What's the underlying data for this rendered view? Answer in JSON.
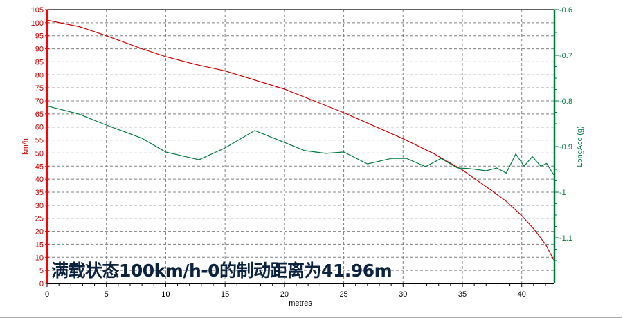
{
  "chart_data": {
    "type": "line",
    "title": "满载状态100km/h-0的制动距离为41.96m",
    "xlabel": "metres",
    "ylabel_left": "km/h",
    "ylabel_right": "LongAcc (g)",
    "xlim": [
      0,
      42.7
    ],
    "ylim_left": [
      0,
      105
    ],
    "ylim_right": [
      -1.1,
      -0.6
    ],
    "x_ticks": [
      0,
      5,
      10,
      15,
      20,
      25,
      30,
      35,
      40
    ],
    "y_left_ticks": [
      0,
      5,
      10,
      15,
      20,
      25,
      30,
      35,
      40,
      45,
      50,
      55,
      60,
      65,
      70,
      75,
      80,
      85,
      90,
      95,
      100,
      105
    ],
    "y_right_ticks": [
      -0.6,
      -0.7,
      -0.8,
      -0.9,
      -1,
      -1.1
    ],
    "grid": true,
    "legend": "none",
    "series": [
      {
        "name": "km/h",
        "axis": "left",
        "color": "#cc0000",
        "x": [
          0,
          2.7,
          5,
          8,
          10,
          12.5,
          15,
          17.5,
          20,
          22.5,
          25,
          27.5,
          30,
          32.5,
          35,
          37.5,
          38.7,
          40,
          41,
          42,
          42.7
        ],
        "y": [
          101,
          98.5,
          95,
          90,
          87,
          84,
          81.5,
          78,
          74.5,
          70,
          65.5,
          60.5,
          55.5,
          50,
          43.5,
          35.5,
          31.5,
          26,
          21,
          15,
          9
        ]
      },
      {
        "name": "LongAcc (g)",
        "axis": "right",
        "color": "#007a3d",
        "x": [
          0,
          2.7,
          5,
          8,
          10,
          12.8,
          15,
          17.5,
          20,
          21.7,
          23.5,
          25,
          27,
          29,
          30.3,
          31.9,
          33.2,
          34.6,
          35.5,
          37,
          37.9,
          38.7,
          39.5,
          40.2,
          40.9,
          41.6,
          42.1,
          42.7
        ],
        "y": [
          -0.811,
          -0.829,
          -0.853,
          -0.882,
          -0.912,
          -0.929,
          -0.903,
          -0.865,
          -0.891,
          -0.909,
          -0.915,
          -0.912,
          -0.938,
          -0.926,
          -0.926,
          -0.944,
          -0.926,
          -0.947,
          -0.948,
          -0.953,
          -0.947,
          -0.958,
          -0.916,
          -0.943,
          -0.922,
          -0.943,
          -0.937,
          -0.962
        ]
      }
    ]
  },
  "annotation": {
    "text": "满载状态100km/h-0的制动距离为41.96m"
  },
  "colors": {
    "left_axis": "#ff0000",
    "left_tick_labels": "#cc0000",
    "right_axis": "#007a3d",
    "grid": "#808080",
    "title_text": "#0c2340"
  }
}
